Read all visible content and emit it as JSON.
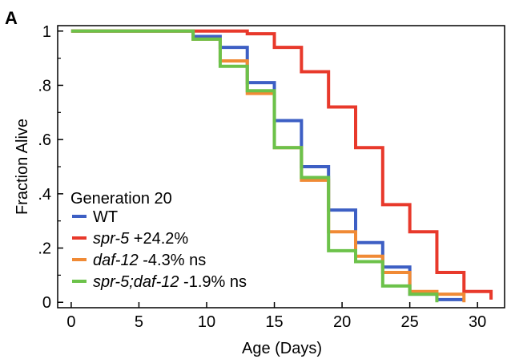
{
  "panel_label": "A",
  "chart_data": {
    "type": "line",
    "step": true,
    "xlabel": "Age (Days)",
    "ylabel": "Fraction Alive",
    "xlim": [
      -1,
      32
    ],
    "ylim": [
      -0.02,
      1.02
    ],
    "xticks": [
      0,
      5,
      10,
      15,
      20,
      25,
      30
    ],
    "xtick_labels": [
      "0",
      "5",
      "10",
      "15",
      "20",
      "25",
      "30"
    ],
    "yticks": [
      0,
      0.2,
      0.4,
      0.6,
      0.8,
      1.0
    ],
    "ytick_labels": [
      "0",
      ".2",
      ".4",
      ".6",
      ".8",
      "1"
    ],
    "legend_title": "Generation 20",
    "legend_position": "bottom-left",
    "series": [
      {
        "name_italic": "",
        "name_rest": "WT",
        "color": "#3d5fc4",
        "x": [
          0,
          9,
          11,
          13,
          15,
          17,
          19,
          21,
          23,
          25,
          27,
          29
        ],
        "y": [
          1.0,
          0.98,
          0.94,
          0.81,
          0.67,
          0.5,
          0.34,
          0.22,
          0.13,
          0.03,
          0.01,
          0.01
        ]
      },
      {
        "name_italic": "spr-5",
        "name_rest": " +24.2%",
        "color": "#e8392b",
        "x": [
          0,
          11,
          13,
          15,
          17,
          19,
          21,
          23,
          25,
          27,
          29,
          31
        ],
        "y": [
          1.0,
          1.0,
          0.99,
          0.94,
          0.85,
          0.72,
          0.57,
          0.36,
          0.26,
          0.11,
          0.04,
          0.01
        ]
      },
      {
        "name_italic": "daf-12",
        "name_rest": " -4.3% ns",
        "color": "#f08a35",
        "x": [
          0,
          9,
          11,
          13,
          15,
          17,
          19,
          21,
          23,
          25,
          27,
          29
        ],
        "y": [
          1.0,
          0.97,
          0.89,
          0.77,
          0.57,
          0.45,
          0.26,
          0.17,
          0.11,
          0.04,
          0.03,
          0.0
        ]
      },
      {
        "name_italic": "spr-5;daf-12",
        "name_rest": " -1.9% ns",
        "color": "#6cc24a",
        "x": [
          0,
          9,
          11,
          13,
          15,
          17,
          19,
          21,
          23,
          25,
          27
        ],
        "y": [
          1.0,
          0.97,
          0.87,
          0.78,
          0.57,
          0.46,
          0.19,
          0.15,
          0.06,
          0.03,
          0.0
        ]
      }
    ]
  }
}
